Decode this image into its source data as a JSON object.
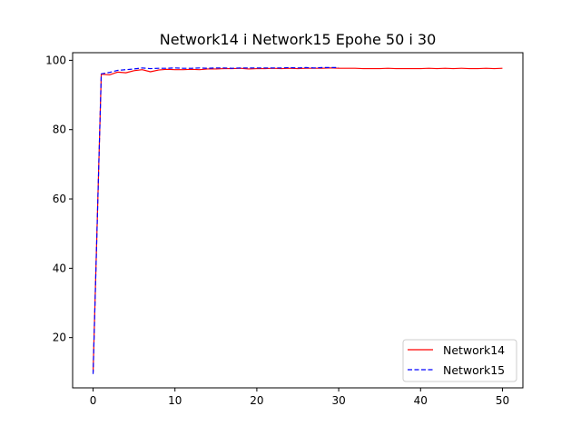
{
  "chart_data": {
    "type": "line",
    "title": "Network14 i Network15 Epohe 50 i 30",
    "xlabel": "",
    "ylabel": "",
    "xlim": [
      -2.5,
      52.5
    ],
    "ylim": [
      5.5,
      102.2
    ],
    "xticks": [
      0,
      10,
      20,
      30,
      40,
      50
    ],
    "yticks": [
      20,
      40,
      60,
      80,
      100
    ],
    "grid": false,
    "legend_position": "lower right",
    "series": [
      {
        "name": "Network14",
        "color": "#ff0000",
        "style": "solid",
        "x": [
          0,
          1,
          2,
          3,
          4,
          5,
          6,
          7,
          8,
          9,
          10,
          11,
          12,
          13,
          14,
          15,
          16,
          17,
          18,
          19,
          20,
          21,
          22,
          23,
          24,
          25,
          26,
          27,
          28,
          29,
          30,
          31,
          32,
          33,
          34,
          35,
          36,
          37,
          38,
          39,
          40,
          41,
          42,
          43,
          44,
          45,
          46,
          47,
          48,
          49,
          50
        ],
        "y": [
          10.0,
          96.0,
          95.8,
          96.6,
          96.4,
          97.0,
          97.3,
          96.7,
          97.2,
          97.4,
          97.3,
          97.3,
          97.4,
          97.3,
          97.5,
          97.5,
          97.6,
          97.6,
          97.7,
          97.5,
          97.6,
          97.6,
          97.7,
          97.6,
          97.7,
          97.6,
          97.7,
          97.7,
          97.7,
          97.8,
          97.7,
          97.7,
          97.7,
          97.6,
          97.6,
          97.6,
          97.7,
          97.6,
          97.6,
          97.6,
          97.6,
          97.7,
          97.6,
          97.7,
          97.6,
          97.7,
          97.6,
          97.6,
          97.7,
          97.6,
          97.7
        ]
      },
      {
        "name": "Network15",
        "color": "#0000ff",
        "style": "dashed",
        "x": [
          0,
          1,
          2,
          3,
          4,
          5,
          6,
          7,
          8,
          9,
          10,
          11,
          12,
          13,
          14,
          15,
          16,
          17,
          18,
          19,
          20,
          21,
          22,
          23,
          24,
          25,
          26,
          27,
          28,
          29,
          30
        ],
        "y": [
          9.5,
          96.1,
          96.5,
          97.1,
          97.3,
          97.5,
          97.8,
          97.6,
          97.7,
          97.7,
          97.8,
          97.7,
          97.7,
          97.8,
          97.7,
          97.8,
          97.8,
          97.7,
          97.8,
          97.8,
          97.8,
          97.8,
          97.8,
          97.8,
          97.9,
          97.8,
          97.9,
          97.8,
          97.9,
          97.9,
          97.9
        ]
      }
    ]
  }
}
